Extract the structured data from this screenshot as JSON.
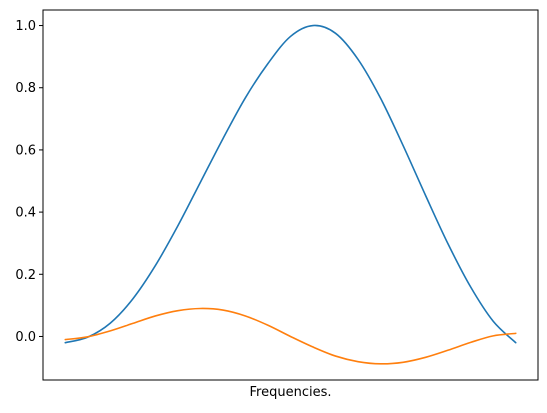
{
  "chart_data": {
    "type": "line",
    "title": "",
    "xlabel": "Frequencies.",
    "ylabel": "",
    "xlim": [
      0,
      1
    ],
    "ylim": [
      -0.14,
      1.05
    ],
    "x_ticks_shown": false,
    "grid": false,
    "legend": "none",
    "y_ticks": [
      0.0,
      0.2,
      0.4,
      0.6,
      0.8,
      1.0
    ],
    "y_tick_labels": [
      "0.0",
      "0.2",
      "0.4",
      "0.6",
      "0.8",
      "1.0"
    ],
    "x": [
      0,
      0.05,
      0.1,
      0.15,
      0.2,
      0.25,
      0.3,
      0.35,
      0.4,
      0.45,
      0.5,
      0.55,
      0.6,
      0.65,
      0.7,
      0.75,
      0.8,
      0.85,
      0.9,
      0.95,
      1.0
    ],
    "series": [
      {
        "color": "#1f77b4",
        "values": [
          -0.02,
          -0.002,
          0.043,
          0.121,
          0.228,
          0.356,
          0.496,
          0.636,
          0.768,
          0.878,
          0.965,
          1.0,
          0.975,
          0.891,
          0.766,
          0.614,
          0.453,
          0.297,
          0.159,
          0.049,
          -0.02
        ]
      },
      {
        "color": "#ff7f0e",
        "values": [
          -0.01,
          -0.001,
          0.018,
          0.042,
          0.066,
          0.083,
          0.09,
          0.085,
          0.066,
          0.036,
          0.0,
          -0.034,
          -0.063,
          -0.081,
          -0.088,
          -0.083,
          -0.067,
          -0.044,
          -0.019,
          0.002,
          0.01
        ]
      }
    ]
  }
}
